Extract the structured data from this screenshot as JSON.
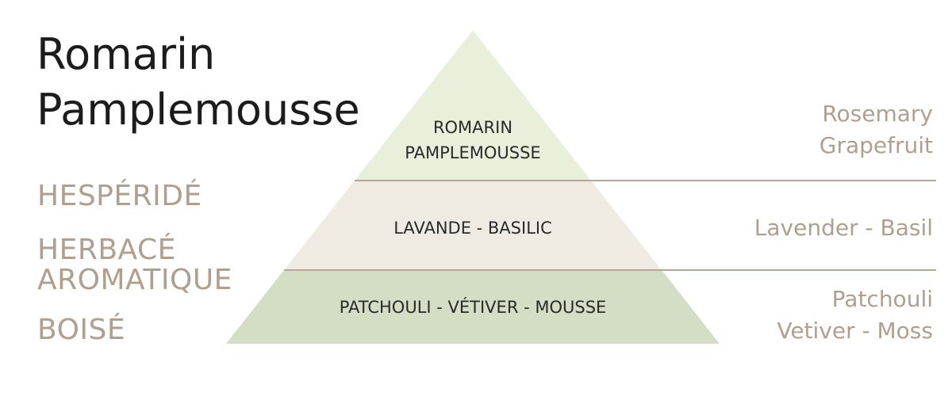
{
  "title": {
    "line1": "Romarin",
    "line2": "Pamplemousse"
  },
  "families": {
    "f1": "HESPÉRIDÉ",
    "f2_line1": "HERBACÉ",
    "f2_line2": "AROMATIQUE",
    "f3": "BOISÉ"
  },
  "pyramid": {
    "top": {
      "line1": "ROMARIN",
      "line2": "PAMPLEMOUSSE",
      "color": "#e8f0dc"
    },
    "middle": {
      "line1": "LAVANDE - BASILIC",
      "color": "#efebe3"
    },
    "base": {
      "line1": "PATCHOULI - VÉTIVER - MOUSSE",
      "color": "#d3dec4"
    }
  },
  "english": {
    "top": {
      "line1": "Rosemary",
      "line2": "Grapefruit"
    },
    "middle": {
      "line1": "Lavender - Basil"
    },
    "base": {
      "line1": "Patchouli",
      "line2": "Vetiver - Moss"
    }
  },
  "divider_color": "#b5a696"
}
